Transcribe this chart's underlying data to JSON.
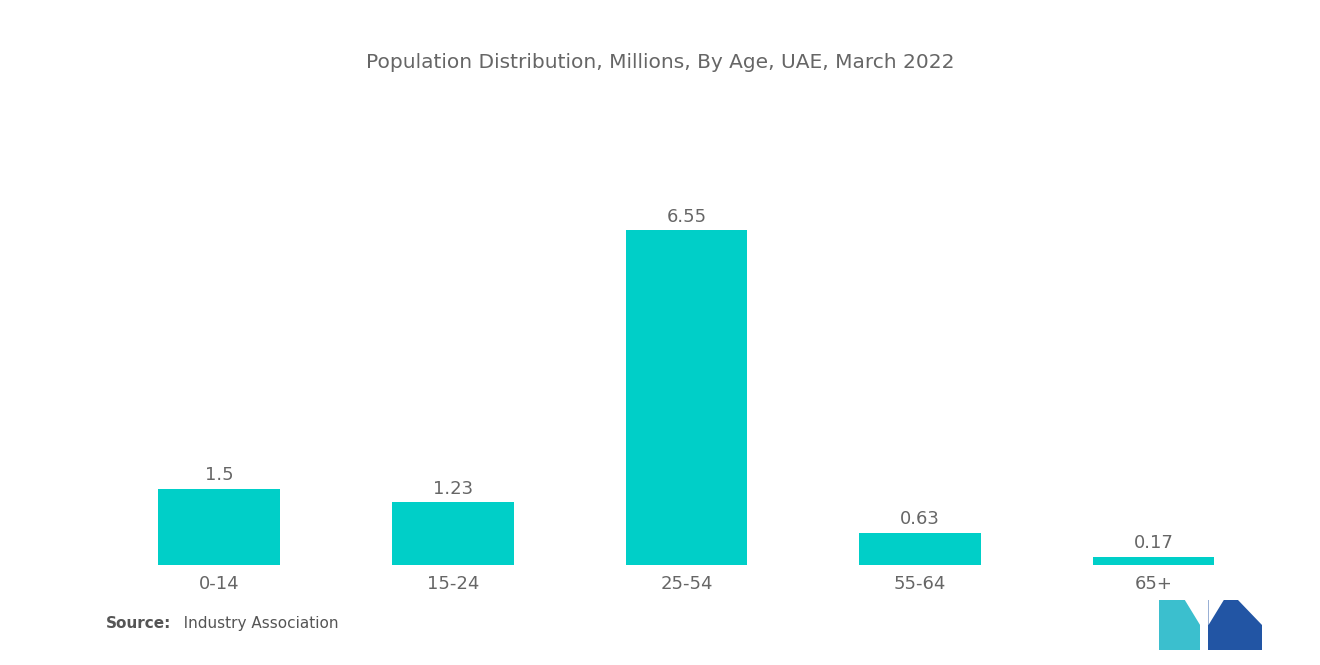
{
  "title": "Population Distribution, Millions, By Age, UAE, March 2022",
  "categories": [
    "0-14",
    "15-24",
    "25-54",
    "55-64",
    "65+"
  ],
  "values": [
    1.5,
    1.23,
    6.55,
    0.63,
    0.17
  ],
  "bar_color": "#00CFC8",
  "background_color": "#ffffff",
  "title_fontsize": 14.5,
  "label_fontsize": 13,
  "tick_fontsize": 13,
  "ylim": [
    0,
    7.8
  ],
  "bar_width": 0.52,
  "label_color": "#666666",
  "tick_color": "#666666",
  "source_bold": "Source:",
  "source_normal": "   Industry Association",
  "source_fontsize": 11,
  "logo_teal": "#3BBFCE",
  "logo_blue": "#2255A4"
}
